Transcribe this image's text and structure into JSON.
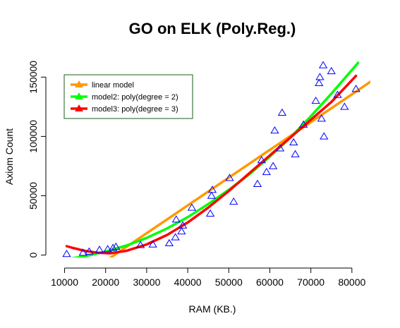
{
  "chart_data": {
    "type": "scatter",
    "title": "GO on ELK (Poly.Reg.)",
    "xlabel": "RAM (KB.)",
    "ylabel": "Axiom Count",
    "xlim": [
      7500,
      84500
    ],
    "ylim": [
      -2000,
      168000
    ],
    "x_ticks": [
      10000,
      20000,
      30000,
      40000,
      50000,
      60000,
      70000,
      80000
    ],
    "x_tick_labels": [
      "10000",
      "20000",
      "30000",
      "40000",
      "50000",
      "60000",
      "70000",
      "80000"
    ],
    "y_ticks": [
      0,
      50000,
      100000,
      150000
    ],
    "y_tick_labels": [
      "0",
      "50000",
      "100000",
      "150000"
    ],
    "grid": false,
    "legend_position": "top-left",
    "points": {
      "marker": "triangle-open",
      "color": "#0000ff",
      "x": [
        10500,
        14500,
        16000,
        18500,
        20500,
        21800,
        22500,
        28500,
        31500,
        35500,
        37000,
        37200,
        38500,
        38800,
        41000,
        45500,
        45800,
        46000,
        50200,
        51200,
        57000,
        58000,
        59200,
        60800,
        61200,
        62500,
        63000,
        65800,
        66200,
        68200,
        71200,
        72000,
        72200,
        72600,
        73000,
        73200,
        75000,
        76500,
        78200,
        81000
      ],
      "y": [
        1000,
        2000,
        3000,
        4500,
        5000,
        6000,
        7000,
        8500,
        9000,
        10000,
        15000,
        30000,
        20000,
        25000,
        40000,
        35000,
        50000,
        55000,
        65000,
        45000,
        60000,
        80000,
        70000,
        75000,
        105000,
        90000,
        120000,
        95000,
        85000,
        110000,
        130000,
        145000,
        150000,
        115000,
        160000,
        100000,
        155000,
        135000,
        125000,
        140000
      ]
    },
    "series": [
      {
        "name": "linear model",
        "color": "#ff9900",
        "x": [
          20000,
          84500
        ],
        "y": [
          -5000,
          146000
        ]
      },
      {
        "name": "model2: poly(degree = 2)",
        "color": "#00ff00",
        "x": [
          10500,
          15000,
          20000,
          25000,
          30000,
          35000,
          40000,
          45000,
          50000,
          55000,
          60000,
          65000,
          70000,
          75000,
          81500
        ],
        "y": [
          -3500,
          -1000,
          3000,
          8000,
          14500,
          22500,
          32000,
          43000,
          55000,
          68000,
          83000,
          99000,
          117000,
          136000,
          162000
        ]
      },
      {
        "name": "model3: poly(degree = 3)",
        "color": "#ff0000",
        "x": [
          10500,
          12000,
          15000,
          18000,
          21000,
          25000,
          30000,
          35000,
          40000,
          45000,
          50000,
          55000,
          60000,
          65000,
          70000,
          75000,
          81000
        ],
        "y": [
          7500,
          6000,
          3500,
          2000,
          1500,
          3500,
          9000,
          17000,
          27500,
          40000,
          54000,
          69000,
          84000,
          99000,
          114000,
          129000,
          151000
        ]
      }
    ]
  }
}
